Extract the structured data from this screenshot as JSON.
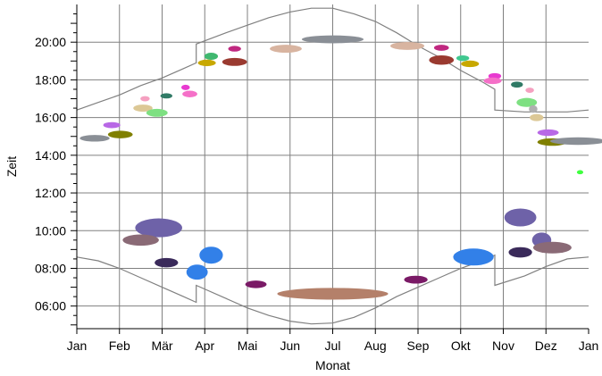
{
  "chart_data": {
    "type": "scatter",
    "title": "",
    "xlabel": "Monat",
    "ylabel": "Zeit",
    "x_tick_labels": [
      "Jan",
      "Feb",
      "Mär",
      "Apr",
      "Mai",
      "Jun",
      "Jul",
      "Aug",
      "Sep",
      "Okt",
      "Nov",
      "Dez",
      "Jan"
    ],
    "y_tick_labels": [
      "06:00",
      "08:00",
      "10:00",
      "12:00",
      "14:00",
      "16:00",
      "18:00",
      "20:00"
    ],
    "x_unit": "month (0 = 1 Jan, 12 = 1 Jan next year)",
    "y_unit": "hour of day",
    "xlim": [
      0,
      12
    ],
    "ylim": [
      4.8,
      22.0
    ],
    "grid": true,
    "legend": "none",
    "series": [
      {
        "kind": "line",
        "color": "#808080",
        "points": [
          [
            0,
            16.4
          ],
          [
            0.5,
            16.8
          ],
          [
            1,
            17.2
          ],
          [
            1.5,
            17.7
          ],
          [
            2,
            18.1
          ],
          [
            2.5,
            18.6
          ],
          [
            2.8,
            18.9
          ],
          [
            2.8,
            19.9
          ],
          [
            3.5,
            20.5
          ],
          [
            4,
            20.9
          ],
          [
            4.5,
            21.3
          ],
          [
            5,
            21.6
          ],
          [
            5.5,
            21.8
          ],
          [
            6,
            21.8
          ],
          [
            6.5,
            21.5
          ],
          [
            7,
            21.1
          ],
          [
            7.5,
            20.5
          ],
          [
            8,
            19.8
          ],
          [
            8.5,
            19.2
          ],
          [
            9,
            18.5
          ],
          [
            9.5,
            17.9
          ],
          [
            9.8,
            17.5
          ],
          [
            9.8,
            16.4
          ],
          [
            10.5,
            16.3
          ],
          [
            11,
            16.3
          ],
          [
            11.5,
            16.3
          ],
          [
            12,
            16.4
          ]
        ]
      },
      {
        "kind": "line",
        "color": "#808080",
        "points": [
          [
            0,
            8.6
          ],
          [
            0.5,
            8.4
          ],
          [
            1,
            8.0
          ],
          [
            1.5,
            7.5
          ],
          [
            2,
            7.0
          ],
          [
            2.5,
            6.5
          ],
          [
            2.8,
            6.2
          ],
          [
            2.8,
            7.1
          ],
          [
            3.5,
            6.4
          ],
          [
            4,
            5.9
          ],
          [
            4.5,
            5.5
          ],
          [
            5,
            5.2
          ],
          [
            5.5,
            5.05
          ],
          [
            6,
            5.1
          ],
          [
            6.5,
            5.4
          ],
          [
            7,
            5.9
          ],
          [
            7.5,
            6.5
          ],
          [
            8,
            7.0
          ],
          [
            8.5,
            7.5
          ],
          [
            9,
            8.0
          ],
          [
            9.5,
            8.4
          ],
          [
            9.8,
            8.7
          ],
          [
            9.8,
            7.1
          ],
          [
            10.5,
            7.6
          ],
          [
            11,
            8.1
          ],
          [
            11.5,
            8.5
          ],
          [
            12,
            8.6
          ]
        ]
      },
      {
        "kind": "blobs",
        "points": [
          {
            "x": 0.42,
            "y": 14.9,
            "w": 0.7,
            "h": 0.35,
            "color": "#8a8f96"
          },
          {
            "x": 0.82,
            "y": 15.6,
            "w": 0.4,
            "h": 0.32,
            "color": "#b868e6"
          },
          {
            "x": 1.02,
            "y": 15.1,
            "w": 0.58,
            "h": 0.4,
            "color": "#808000"
          },
          {
            "x": 1.55,
            "y": 16.5,
            "w": 0.45,
            "h": 0.38,
            "color": "#dcc896"
          },
          {
            "x": 1.88,
            "y": 16.25,
            "w": 0.5,
            "h": 0.42,
            "color": "#7ee082"
          },
          {
            "x": 1.6,
            "y": 17.0,
            "w": 0.22,
            "h": 0.28,
            "color": "#f5a0c0"
          },
          {
            "x": 2.1,
            "y": 17.15,
            "w": 0.28,
            "h": 0.28,
            "color": "#307a66"
          },
          {
            "x": 2.55,
            "y": 17.6,
            "w": 0.2,
            "h": 0.28,
            "color": "#e83ad0"
          },
          {
            "x": 2.65,
            "y": 17.25,
            "w": 0.35,
            "h": 0.35,
            "color": "#f570c8"
          },
          {
            "x": 3.15,
            "y": 19.25,
            "w": 0.32,
            "h": 0.38,
            "color": "#40b870"
          },
          {
            "x": 3.05,
            "y": 18.9,
            "w": 0.42,
            "h": 0.35,
            "color": "#c8a800"
          },
          {
            "x": 3.7,
            "y": 19.65,
            "w": 0.3,
            "h": 0.3,
            "color": "#c02880"
          },
          {
            "x": 3.7,
            "y": 18.95,
            "w": 0.58,
            "h": 0.42,
            "color": "#9a3a30"
          },
          {
            "x": 4.9,
            "y": 19.65,
            "w": 0.75,
            "h": 0.42,
            "color": "#d8b4a0"
          },
          {
            "x": 6.0,
            "y": 20.15,
            "w": 1.45,
            "h": 0.42,
            "color": "#8a8f96"
          },
          {
            "x": 7.75,
            "y": 19.8,
            "w": 0.8,
            "h": 0.42,
            "color": "#d8b4a0"
          },
          {
            "x": 8.55,
            "y": 19.7,
            "w": 0.35,
            "h": 0.32,
            "color": "#c02880"
          },
          {
            "x": 8.55,
            "y": 19.05,
            "w": 0.58,
            "h": 0.5,
            "color": "#9a3a30"
          },
          {
            "x": 9.05,
            "y": 19.15,
            "w": 0.3,
            "h": 0.3,
            "color": "#40c890"
          },
          {
            "x": 9.22,
            "y": 18.85,
            "w": 0.42,
            "h": 0.35,
            "color": "#c8a800"
          },
          {
            "x": 9.8,
            "y": 18.2,
            "w": 0.3,
            "h": 0.32,
            "color": "#e83ad0"
          },
          {
            "x": 9.75,
            "y": 17.95,
            "w": 0.42,
            "h": 0.35,
            "color": "#f570c8"
          },
          {
            "x": 10.32,
            "y": 17.75,
            "w": 0.28,
            "h": 0.32,
            "color": "#307a66"
          },
          {
            "x": 10.62,
            "y": 17.45,
            "w": 0.2,
            "h": 0.28,
            "color": "#f5a0c0"
          },
          {
            "x": 10.55,
            "y": 16.8,
            "w": 0.48,
            "h": 0.48,
            "color": "#7ee082"
          },
          {
            "x": 10.7,
            "y": 16.45,
            "w": 0.2,
            "h": 0.4,
            "color": "#b0b0b0"
          },
          {
            "x": 10.78,
            "y": 16.0,
            "w": 0.32,
            "h": 0.38,
            "color": "#dcc896"
          },
          {
            "x": 11.05,
            "y": 15.2,
            "w": 0.5,
            "h": 0.35,
            "color": "#b868e6"
          },
          {
            "x": 11.15,
            "y": 14.7,
            "w": 0.7,
            "h": 0.4,
            "color": "#808000"
          },
          {
            "x": 11.75,
            "y": 14.75,
            "w": 1.3,
            "h": 0.4,
            "color": "#8a8f96"
          },
          {
            "x": 11.8,
            "y": 13.1,
            "w": 0.15,
            "h": 0.22,
            "color": "#40ff40"
          },
          {
            "x": 1.92,
            "y": 10.15,
            "w": 1.1,
            "h": 1.0,
            "color": "#6e62a8"
          },
          {
            "x": 1.5,
            "y": 9.5,
            "w": 0.85,
            "h": 0.6,
            "color": "#8a6a76"
          },
          {
            "x": 2.1,
            "y": 8.3,
            "w": 0.55,
            "h": 0.5,
            "color": "#3a2a5a"
          },
          {
            "x": 3.15,
            "y": 8.7,
            "w": 0.55,
            "h": 0.9,
            "color": "#3280e8"
          },
          {
            "x": 2.82,
            "y": 7.8,
            "w": 0.5,
            "h": 0.8,
            "color": "#3280e8"
          },
          {
            "x": 4.2,
            "y": 7.15,
            "w": 0.5,
            "h": 0.4,
            "color": "#7a1a66"
          },
          {
            "x": 6.0,
            "y": 6.65,
            "w": 2.6,
            "h": 0.62,
            "color": "#b4806a"
          },
          {
            "x": 7.95,
            "y": 7.4,
            "w": 0.55,
            "h": 0.42,
            "color": "#7a1a66"
          },
          {
            "x": 9.3,
            "y": 8.6,
            "w": 0.95,
            "h": 0.9,
            "color": "#3280e8"
          },
          {
            "x": 10.4,
            "y": 10.7,
            "w": 0.75,
            "h": 0.95,
            "color": "#6e62a8"
          },
          {
            "x": 10.9,
            "y": 9.5,
            "w": 0.45,
            "h": 0.8,
            "color": "#6e62a8"
          },
          {
            "x": 11.15,
            "y": 9.1,
            "w": 0.9,
            "h": 0.62,
            "color": "#8a6a76"
          },
          {
            "x": 10.4,
            "y": 8.85,
            "w": 0.55,
            "h": 0.55,
            "color": "#3a2a5a"
          }
        ]
      }
    ]
  }
}
